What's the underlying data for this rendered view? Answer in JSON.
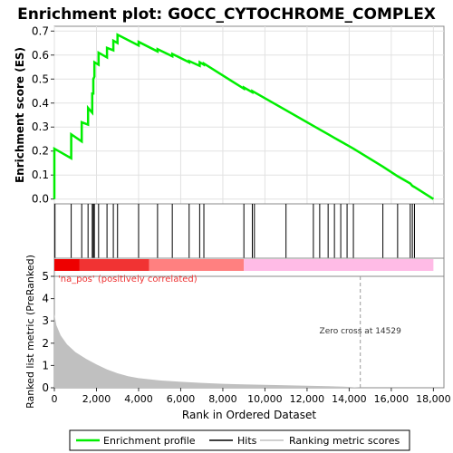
{
  "chart_data": {
    "title": "Enrichment plot: GOCC_CYTOCHROME_COMPLEX",
    "xlabel": "Rank in Ordered Dataset",
    "top_panel": {
      "type": "line",
      "ylabel": "Enrichment score (ES)",
      "ylim": [
        -0.02,
        0.72
      ],
      "yticks": [
        0.0,
        0.1,
        0.2,
        0.3,
        0.4,
        0.5,
        0.6,
        0.7
      ],
      "grid": true,
      "line_color": "#00ee00",
      "series": [
        {
          "name": "Enrichment profile",
          "points": [
            [
              0,
              0.0
            ],
            [
              0,
              0.21
            ],
            [
              800,
              0.17
            ],
            [
              800,
              0.27
            ],
            [
              1300,
              0.24
            ],
            [
              1300,
              0.32
            ],
            [
              1600,
              0.31
            ],
            [
              1600,
              0.38
            ],
            [
              1800,
              0.36
            ],
            [
              1800,
              0.44
            ],
            [
              1850,
              0.44
            ],
            [
              1850,
              0.5
            ],
            [
              1900,
              0.51
            ],
            [
              1900,
              0.57
            ],
            [
              2100,
              0.56
            ],
            [
              2100,
              0.61
            ],
            [
              2500,
              0.59
            ],
            [
              2500,
              0.63
            ],
            [
              2800,
              0.62
            ],
            [
              2800,
              0.66
            ],
            [
              3000,
              0.65
            ],
            [
              3000,
              0.685
            ],
            [
              4000,
              0.64
            ],
            [
              4000,
              0.655
            ],
            [
              4900,
              0.615
            ],
            [
              4900,
              0.625
            ],
            [
              5600,
              0.595
            ],
            [
              5600,
              0.605
            ],
            [
              6400,
              0.57
            ],
            [
              6400,
              0.575
            ],
            [
              6900,
              0.555
            ],
            [
              6900,
              0.57
            ],
            [
              7100,
              0.56
            ],
            [
              7100,
              0.565
            ],
            [
              9000,
              0.46
            ],
            [
              9000,
              0.465
            ],
            [
              9400,
              0.445
            ],
            [
              9400,
              0.45
            ],
            [
              9500,
              0.445
            ],
            [
              11000,
              0.37
            ],
            [
              12300,
              0.305
            ],
            [
              12600,
              0.29
            ],
            [
              13000,
              0.27
            ],
            [
              13300,
              0.255
            ],
            [
              13600,
              0.24
            ],
            [
              13900,
              0.225
            ],
            [
              14200,
              0.21
            ],
            [
              15600,
              0.135
            ],
            [
              16300,
              0.095
            ],
            [
              16900,
              0.065
            ],
            [
              17000,
              0.055
            ],
            [
              17100,
              0.05
            ],
            [
              18000,
              0.0
            ]
          ]
        }
      ]
    },
    "hits_panel": {
      "type": "hits",
      "hit_positions": [
        30,
        800,
        1300,
        1600,
        1800,
        1850,
        1900,
        2100,
        2500,
        2800,
        3000,
        4000,
        4900,
        5600,
        6400,
        6900,
        7100,
        9000,
        9400,
        9500,
        11000,
        12300,
        12600,
        13000,
        13300,
        13600,
        13900,
        14200,
        15600,
        16300,
        16900,
        17000,
        17100
      ]
    },
    "bar_panel": {
      "colors": {
        "high": "#ee0000",
        "mid": "#ff8080",
        "low": "#ffbbe6"
      },
      "breaks": [
        1200,
        4500,
        9000,
        18000
      ]
    },
    "bottom_panel": {
      "type": "area",
      "ylabel": "Ranked list metric (PreRanked)",
      "ylim": [
        0,
        5
      ],
      "yticks": [
        0,
        1,
        2,
        3,
        4,
        5
      ],
      "fill_color": "#c0c0c0",
      "series": [
        {
          "name": "Ranking metric scores",
          "points": [
            [
              0,
              3.3
            ],
            [
              100,
              2.8
            ],
            [
              300,
              2.35
            ],
            [
              600,
              1.95
            ],
            [
              1000,
              1.6
            ],
            [
              1500,
              1.3
            ],
            [
              2000,
              1.05
            ],
            [
              2500,
              0.82
            ],
            [
              3000,
              0.65
            ],
            [
              3500,
              0.52
            ],
            [
              4000,
              0.43
            ],
            [
              5000,
              0.33
            ],
            [
              6000,
              0.27
            ],
            [
              7000,
              0.22
            ],
            [
              8000,
              0.18
            ],
            [
              9000,
              0.15
            ],
            [
              10000,
              0.13
            ],
            [
              11000,
              0.11
            ],
            [
              12000,
              0.09
            ],
            [
              13000,
              0.07
            ],
            [
              14000,
              0.04
            ],
            [
              14529,
              0.0
            ],
            [
              18000,
              0.0
            ]
          ]
        }
      ],
      "annotation_pos": "'na_pos' (positively correlated)",
      "annotation_zero": "Zero cross at 14529",
      "zero_cross": 14529
    },
    "xlim": [
      0,
      18500
    ],
    "xticks": [
      0,
      2000,
      4000,
      6000,
      8000,
      10000,
      12000,
      14000,
      16000,
      18000
    ],
    "xtick_labels": [
      "0",
      "2,000",
      "4,000",
      "6,000",
      "8,000",
      "10,000",
      "12,000",
      "14,000",
      "16,000",
      "18,000"
    ],
    "legend": {
      "placement": "bottom",
      "items": [
        "Enrichment profile",
        "Hits",
        "Ranking metric scores"
      ]
    }
  }
}
